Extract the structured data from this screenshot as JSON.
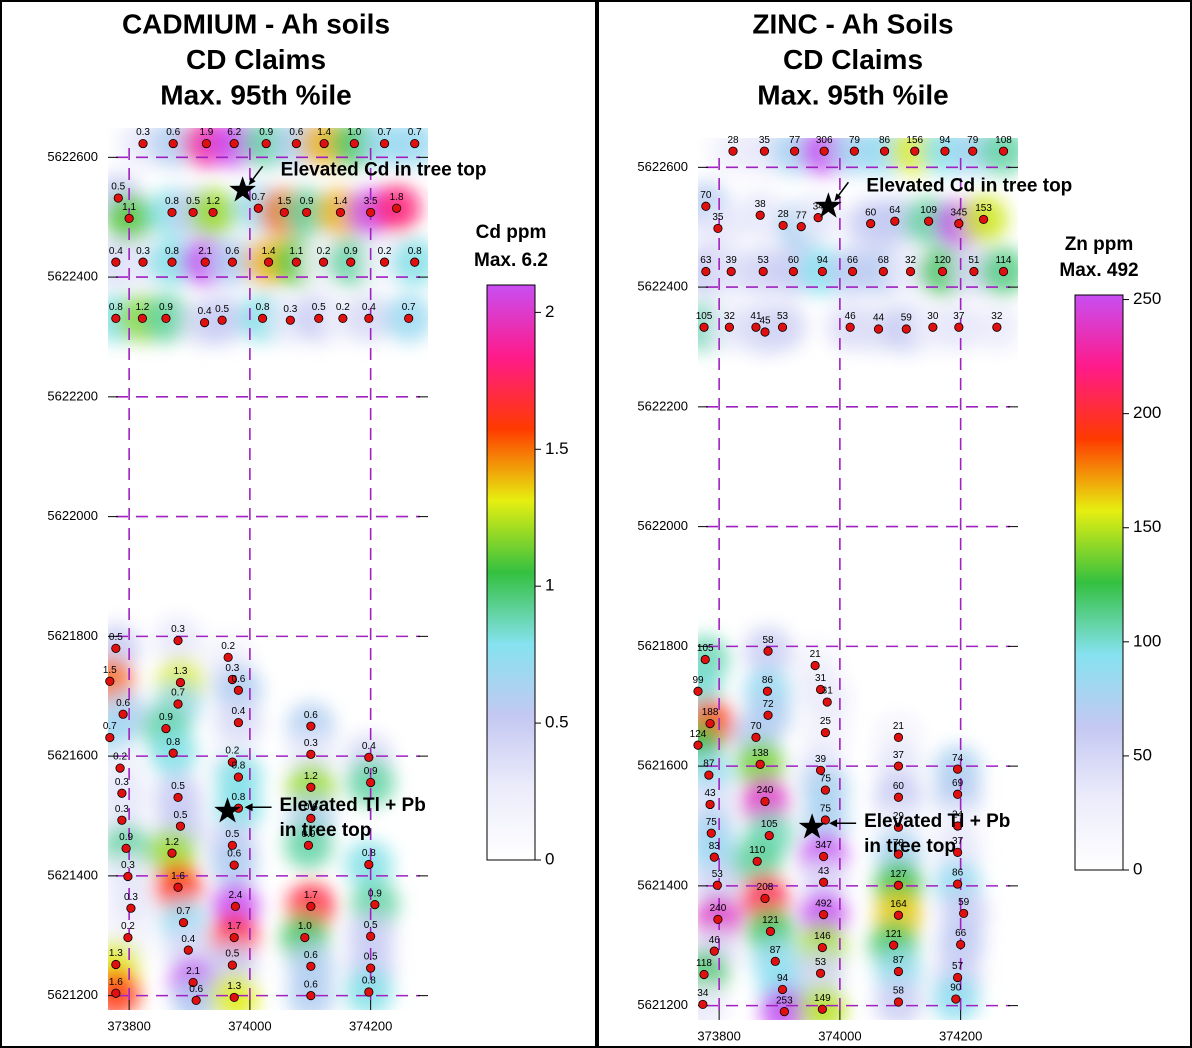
{
  "chart_data": [
    {
      "type": "scatter",
      "title": [
        "CADMIUM - Ah soils",
        "CD Claims",
        "Max. 95th %ile"
      ],
      "colorbar_title": [
        "Cd ppm",
        "Max. 6.2"
      ],
      "annotations": [
        "Elevated Cd in tree top",
        "Elevated Tl + Pb",
        "in tree top"
      ],
      "xlim": [
        373765,
        374295
      ],
      "ylim": [
        5621176,
        5622649
      ],
      "xticks": [
        373800,
        374000,
        374200
      ],
      "yticks": [
        5621200,
        5621400,
        5621600,
        5621800,
        5622000,
        5622200,
        5622400,
        5622600
      ],
      "grid": true,
      "grid_color": "#a020c0",
      "point_color": "#e01010",
      "clim": [
        0,
        2.1
      ],
      "cticks": [
        0,
        0.5,
        1,
        1.5,
        2
      ],
      "colors": [
        "#ffffff",
        "#ececfb",
        "#c4c8f2",
        "#86e2f0",
        "#34c040",
        "#e6ef10",
        "#ff3a00",
        "#ff1a8a",
        "#c84ef2"
      ],
      "stars": {
        "x": [
          373988,
          373963
        ],
        "y": [
          5622545,
          5621508
        ]
      },
      "x": [
        373823,
        373873,
        373928,
        373974,
        374027,
        374077,
        374123,
        374173,
        374223,
        374273,
        373782,
        373800,
        373871,
        373906,
        373939,
        374014,
        374057,
        374094,
        374150,
        374200,
        374243,
        373778,
        373823,
        373871,
        373926,
        373971,
        374031,
        374077,
        374122,
        374167,
        374223,
        374273,
        373778,
        373822,
        373861,
        373925,
        373954,
        374021,
        374067,
        374114,
        374154,
        374197,
        374263,
        373778,
        373768,
        373790,
        373768,
        373785,
        373788,
        373788,
        373795,
        373798,
        373803,
        373798,
        373778,
        373778,
        373881,
        373885,
        373881,
        373861,
        373873,
        373881,
        373885,
        373871,
        373881,
        373890,
        373898,
        373906,
        373911,
        373964,
        373971,
        373981,
        373981,
        373971,
        373981,
        373981,
        373971,
        373974,
        373976,
        373974,
        373971,
        373974,
        374101,
        374101,
        374101,
        374101,
        374097,
        374101,
        374091,
        374101,
        374101,
        374197,
        374200,
        374197,
        374207,
        374200,
        374200,
        374197
      ],
      "y": [
        5622623,
        5622623,
        5622623,
        5622623,
        5622623,
        5622623,
        5622623,
        5622623,
        5622623,
        5622623,
        5622532,
        5622498,
        5622508,
        5622508,
        5622508,
        5622515,
        5622508,
        5622508,
        5622508,
        5622508,
        5622515,
        5622425,
        5622425,
        5622425,
        5622425,
        5622425,
        5622425,
        5622425,
        5622425,
        5622425,
        5622425,
        5622425,
        5622331,
        5622331,
        5622331,
        5622324,
        5622328,
        5622331,
        5622328,
        5622331,
        5622331,
        5622331,
        5622331,
        5621780,
        5621725,
        5621670,
        5621631,
        5621580,
        5621538,
        5621493,
        5621446,
        5621399,
        5621346,
        5621297,
        5621252,
        5621204,
        5621793,
        5621723,
        5621687,
        5621646,
        5621605,
        5621531,
        5621483,
        5621438,
        5621381,
        5621322,
        5621276,
        5621222,
        5621192,
        5621765,
        5621728,
        5621710,
        5621656,
        5621590,
        5621565,
        5621513,
        5621451,
        5621418,
        5621349,
        5621297,
        5621251,
        5621197,
        5621650,
        5621603,
        5621548,
        5621496,
        5621451,
        5621349,
        5621297,
        5621249,
        5621200,
        5621598,
        5621556,
        5621419,
        5621352,
        5621299,
        5621246,
        5621206
      ],
      "values": [
        0.3,
        0.6,
        1.9,
        6.2,
        0.9,
        0.6,
        1.4,
        1.0,
        0.7,
        0.7,
        0.5,
        1.1,
        0.8,
        0.5,
        1.2,
        0.7,
        1.5,
        0.9,
        1.4,
        3.5,
        1.8,
        0.4,
        0.3,
        0.8,
        2.1,
        0.6,
        1.4,
        1.1,
        0.2,
        0.9,
        0.2,
        0.8,
        0.8,
        1.2,
        0.9,
        0.4,
        0.5,
        0.8,
        0.3,
        0.5,
        0.2,
        0.4,
        0.7,
        0.5,
        1.5,
        0.6,
        0.7,
        0.2,
        0.3,
        0.3,
        0.9,
        0.3,
        0.3,
        0.2,
        1.3,
        1.6,
        0.3,
        1.3,
        0.7,
        0.9,
        0.8,
        0.5,
        0.5,
        1.2,
        1.6,
        0.7,
        0.4,
        2.1,
        0.6,
        0.2,
        0.3,
        0.6,
        0.4,
        0.2,
        0.8,
        0.8,
        0.5,
        0.6,
        2.4,
        1.7,
        0.5,
        1.3,
        0.6,
        0.3,
        1.2,
        0.6,
        0.9,
        1.7,
        1.0,
        0.6,
        0.6,
        0.4,
        0.9,
        0.8,
        0.9,
        0.5,
        0.5,
        0.8
      ],
      "value_labels": [
        "0.3",
        "0.6",
        "1.9",
        "6.2",
        "0.9",
        "0.6",
        "1.4",
        "1.0",
        "0.7",
        "0.7",
        "0.5",
        "1.1",
        "0.8",
        "0.5",
        "1.2",
        "0.7",
        "1.5",
        "0.9",
        "1.4",
        "3.5",
        "1.8",
        "0.4",
        "0.3",
        "0.8",
        "2.1",
        "0.6",
        "1.4",
        "1.1",
        "0.2",
        "0.9",
        "0.2",
        "0.8",
        "0.8",
        "1.2",
        "0.9",
        "0.4",
        "0.5",
        "0.8",
        "0.3",
        "0.5",
        "0.2",
        "0.4",
        "0.7",
        "0.5",
        "1.5",
        "0.6",
        "0.7",
        "0.2",
        "0.3",
        "0.3",
        "0.9",
        "0.3",
        "0.3",
        "0.2",
        "1.3",
        "1.6",
        "0.3",
        "1.3",
        "0.7",
        "0.9",
        "0.8",
        "0.5",
        "0.5",
        "1.2",
        "1.6",
        "0.7",
        "0.4",
        "2.1",
        "0.6",
        "0.2",
        "0.3",
        "0.6",
        "0.4",
        "0.2",
        "0.8",
        "0.8",
        "0.5",
        "0.6",
        "2.4",
        "1.7",
        "0.5",
        "1.3",
        "0.6",
        "0.3",
        "1.2",
        "0.6",
        "0.9",
        "1.7",
        "1.0",
        "0.6",
        "0.6",
        "0.4",
        "0.9",
        "0.8",
        "0.9",
        "0.5",
        "0.5",
        "0.8"
      ]
    },
    {
      "type": "scatter",
      "title": [
        "ZINC - Ah Soils",
        "CD Claims",
        "Max. 95th %ile"
      ],
      "colorbar_title": [
        "Zn ppm",
        "Max. 492"
      ],
      "annotations": [
        "Elevated Cd in tree top",
        "Elevated Tl + Pb",
        "in tree top"
      ],
      "xlim": [
        373765,
        374295
      ],
      "ylim": [
        5621176,
        5622649
      ],
      "xticks": [
        373800,
        374000,
        374200
      ],
      "yticks": [
        5621200,
        5621400,
        5621600,
        5621800,
        5622000,
        5622200,
        5622400,
        5622600
      ],
      "grid": true,
      "grid_color": "#a020c0",
      "point_color": "#e01010",
      "clim": [
        0,
        252
      ],
      "cticks": [
        0,
        50,
        100,
        150,
        200,
        250
      ],
      "colors": [
        "#ffffff",
        "#ececfb",
        "#c4c8f2",
        "#86e2f0",
        "#34c040",
        "#e6ef10",
        "#ff3a00",
        "#ff1a8a",
        "#c84ef2"
      ],
      "stars": {
        "x": [
          373981,
          373954
        ],
        "y": [
          5622535,
          5621498
        ]
      },
      "x": [
        373823,
        373875,
        373925,
        373974,
        374024,
        374074,
        374124,
        374174,
        374220,
        374271,
        373778,
        373798,
        373868,
        373906,
        373936,
        373964,
        374051,
        374091,
        374147,
        374197,
        374238,
        373778,
        373820,
        373873,
        373923,
        373971,
        374021,
        374072,
        374117,
        374170,
        374222,
        374271,
        373775,
        373817,
        373861,
        373876,
        373905,
        374017,
        374064,
        374110,
        374154,
        374197,
        374260,
        373777,
        373765,
        373785,
        373765,
        373783,
        373785,
        373787,
        373792,
        373797,
        373798,
        373792,
        373775,
        373773,
        373881,
        373880,
        373881,
        373861,
        373868,
        373876,
        373883,
        373863,
        373876,
        373885,
        373893,
        373905,
        373908,
        373959,
        373968,
        373979,
        373976,
        373968,
        373976,
        373976,
        373973,
        373973,
        373973,
        373971,
        373968,
        373971,
        374097,
        374097,
        374097,
        374097,
        374097,
        374097,
        374097,
        374089,
        374097,
        374097,
        374195,
        374195,
        374195,
        374195,
        374195,
        374205,
        374200,
        374195,
        374192
      ],
      "y": [
        5622627,
        5622627,
        5622627,
        5622627,
        5622627,
        5622627,
        5622627,
        5622627,
        5622627,
        5622627,
        5622535,
        5622498,
        5622520,
        5622503,
        5622501,
        5622516,
        5622506,
        5622510,
        5622510,
        5622506,
        5622513,
        5622426,
        5622426,
        5622426,
        5622426,
        5622426,
        5622426,
        5622426,
        5622426,
        5622426,
        5622426,
        5622426,
        5622333,
        5622333,
        5622333,
        5622325,
        5622333,
        5622333,
        5622330,
        5622330,
        5622333,
        5622333,
        5622333,
        5621778,
        5621725,
        5621671,
        5621635,
        5621585,
        5621536,
        5621488,
        5621448,
        5621401,
        5621344,
        5621291,
        5621252,
        5621202,
        5621792,
        5621725,
        5621685,
        5621648,
        5621603,
        5621541,
        5621484,
        5621441,
        5621379,
        5621324,
        5621274,
        5621227,
        5621190,
        5621768,
        5621728,
        5621707,
        5621656,
        5621593,
        5621560,
        5621510,
        5621449,
        5621406,
        5621352,
        5621297,
        5621254,
        5621194,
        5621648,
        5621600,
        5621548,
        5621498,
        5621453,
        5621401,
        5621351,
        5621301,
        5621257,
        5621206,
        5621595,
        5621553,
        5621500,
        5621456,
        5621403,
        5621354,
        5621302,
        5621247,
        5621211
      ],
      "values": [
        28,
        35,
        77,
        306,
        79,
        86,
        156,
        94,
        79,
        108,
        70,
        35,
        38,
        28,
        77,
        34,
        60,
        64,
        109,
        345,
        153,
        63,
        39,
        53,
        60,
        94,
        66,
        68,
        32,
        120,
        51,
        114,
        105,
        32,
        41,
        45,
        53,
        46,
        44,
        59,
        30,
        37,
        32,
        105,
        99,
        188,
        124,
        87,
        43,
        75,
        83,
        53,
        240,
        46,
        118,
        34,
        58,
        86,
        72,
        70,
        138,
        240,
        105,
        110,
        208,
        121,
        87,
        94,
        253,
        21,
        31,
        31,
        25,
        39,
        75,
        75,
        347,
        43,
        492,
        146,
        53,
        149,
        21,
        37,
        60,
        29,
        78,
        127,
        164,
        121,
        87,
        58,
        74,
        69,
        24,
        37,
        86,
        59,
        66,
        57,
        90
      ]
    }
  ]
}
